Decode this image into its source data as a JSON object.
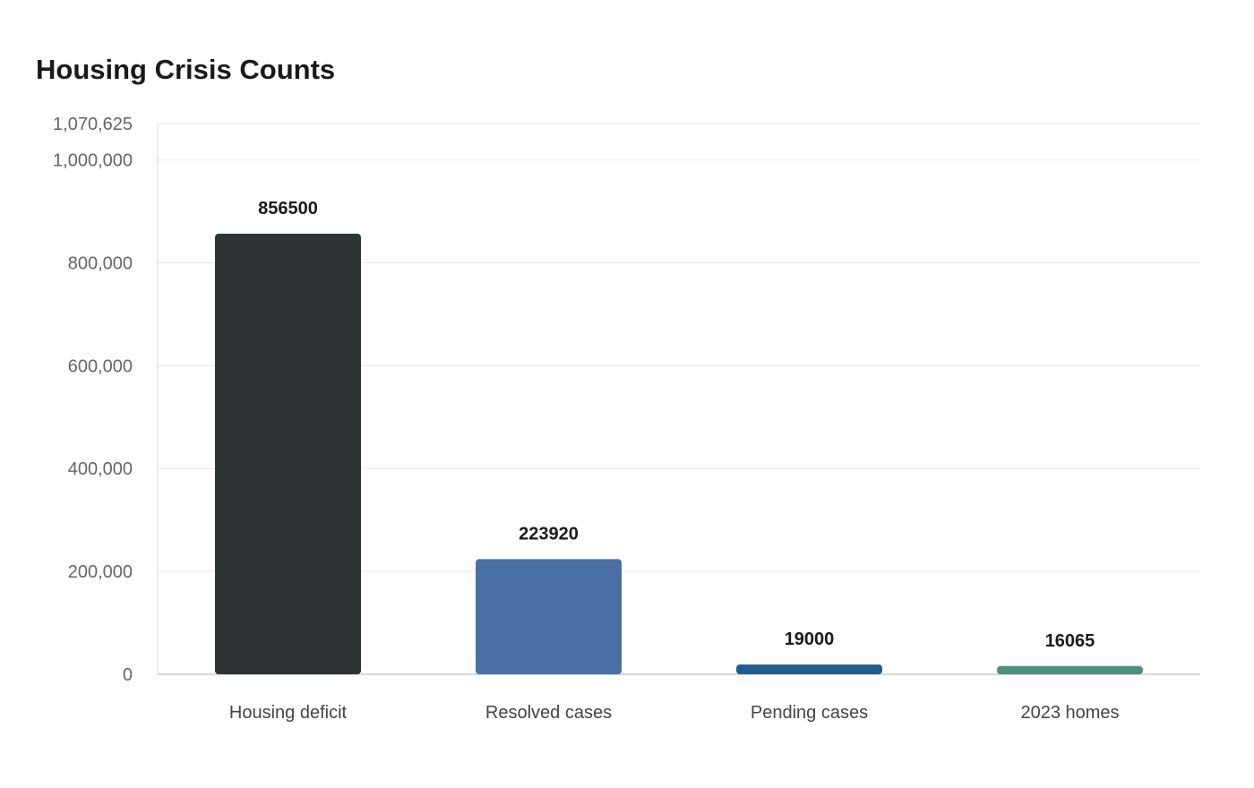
{
  "chart_data": {
    "type": "bar",
    "title": "Housing Crisis Counts",
    "xlabel": "",
    "ylabel": "",
    "categories": [
      "Housing deficit",
      "Resolved cases",
      "Pending cases",
      "2023 homes"
    ],
    "values": [
      856500,
      223920,
      19000,
      16065
    ],
    "value_labels": [
      "856500",
      "223920",
      "19000",
      "16065"
    ],
    "colors": [
      "#2e3436",
      "#4a6fa5",
      "#1f5f8b",
      "#4f8f80"
    ],
    "ylim": [
      0,
      1070625
    ],
    "y_ticks": [
      0,
      200000,
      400000,
      600000,
      800000,
      1000000,
      1070625
    ],
    "y_tick_labels": [
      "0",
      "200,000",
      "400,000",
      "600,000",
      "800,000",
      "1,000,000",
      "1,070,625"
    ],
    "grid": true,
    "legend": "none"
  }
}
